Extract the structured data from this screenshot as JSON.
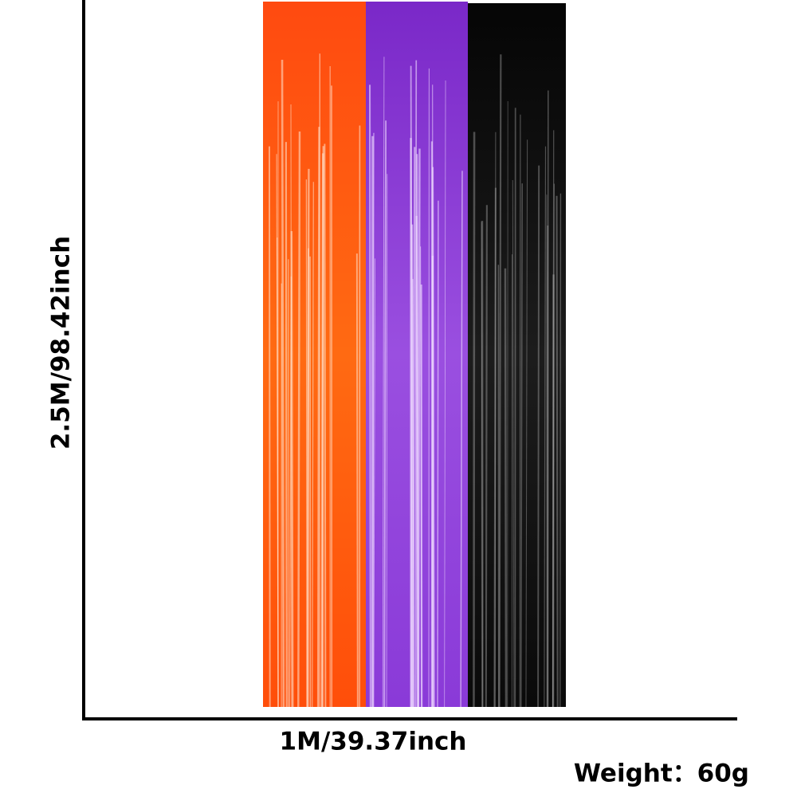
{
  "dimensions": {
    "height": "2.5M/98.42inch",
    "width": "1M/39.37inch"
  },
  "weight": "Weight：60g"
}
